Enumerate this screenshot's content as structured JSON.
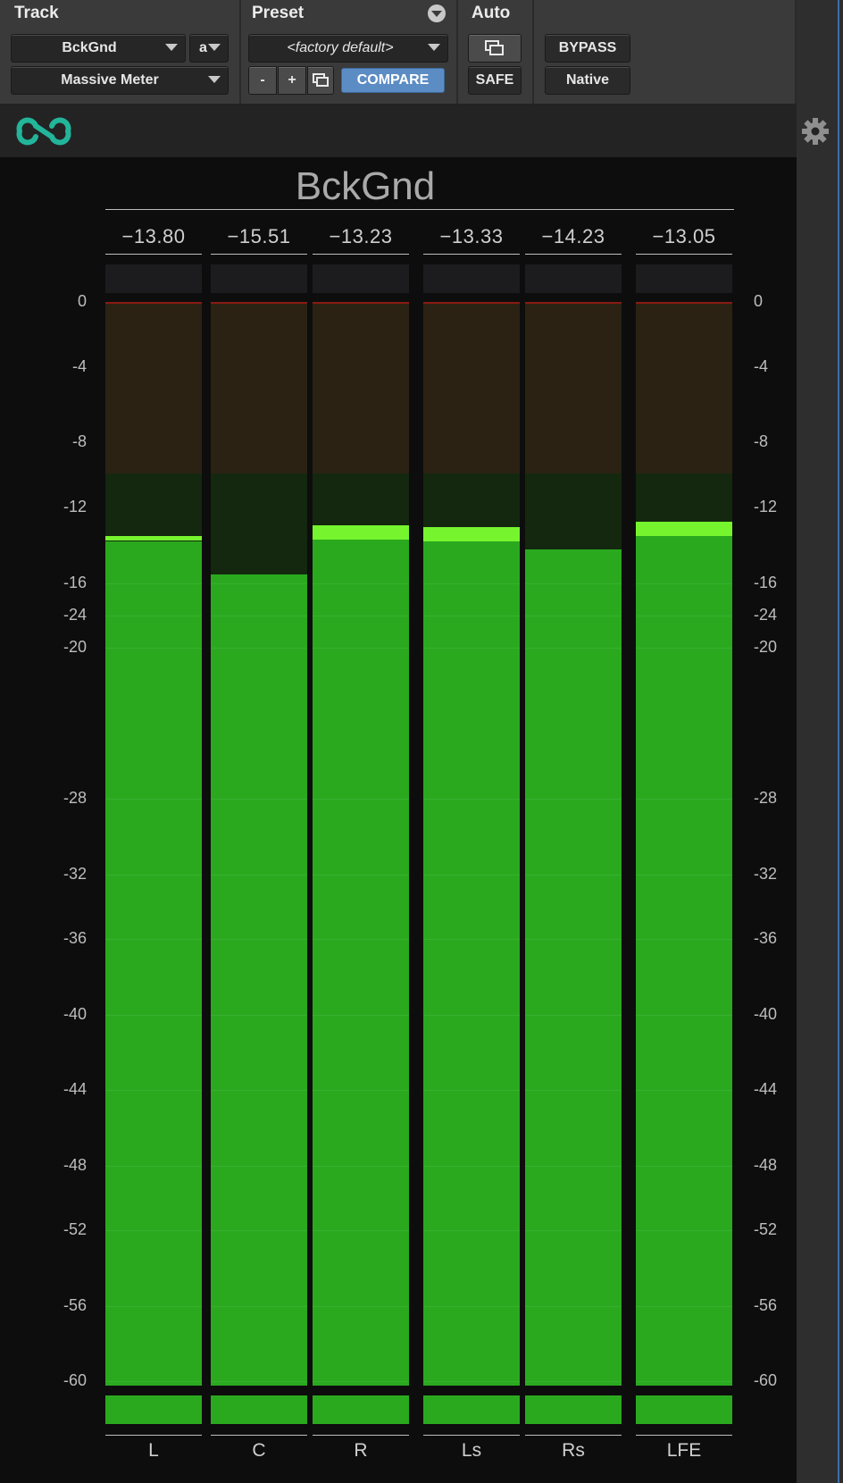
{
  "header": {
    "track_title": "Track",
    "preset_title": "Preset",
    "auto_title": "Auto",
    "track_name": "BckGnd",
    "track_chan": "a",
    "plugin_name": "Massive Meter",
    "preset_name": "<factory default>",
    "minus_label": "-",
    "plus_label": "+",
    "compare_label": "COMPARE",
    "safe_label": "SAFE",
    "bypass_label": "BYPASS",
    "native_label": "Native"
  },
  "meter": {
    "title": "BckGnd",
    "scale_left": [
      "0",
      "-4",
      "-8",
      "-12",
      "-16",
      "-24",
      "-20",
      "-28",
      "-32",
      "-36",
      "-40",
      "-44",
      "-48",
      "-52",
      "-56",
      "-60"
    ],
    "scale_right": [
      "0",
      "-4",
      "-8",
      "-12",
      "-16",
      "-24",
      "-20",
      "-28",
      "-32",
      "-36",
      "-40",
      "-44",
      "-48",
      "-52",
      "-56",
      "-60"
    ],
    "channels": [
      {
        "label": "L",
        "peak": "-13.80",
        "level_db": -13.8
      },
      {
        "label": "C",
        "peak": "-15.51",
        "level_db": -15.51
      },
      {
        "label": "R",
        "peak": "-13.23",
        "level_db": -13.23
      },
      {
        "label": "Ls",
        "peak": "-13.33",
        "level_db": -13.33
      },
      {
        "label": "Rs",
        "peak": "-14.23",
        "level_db": -14.23
      },
      {
        "label": "LFE",
        "peak": "-13.05",
        "level_db": -13.05
      }
    ]
  },
  "colors": {
    "meter_green": "#2aa91f",
    "peak_green": "#76f52e",
    "compare_blue": "#5c8cc4",
    "bypass_red": "#e53b3b",
    "logo_teal": "#22b59a"
  },
  "icons": {
    "logo": "infinity-logo-icon",
    "settings": "gear-icon",
    "preset_menu": "chevron-down-icon",
    "copy": "copy-icon",
    "power": "power-icon"
  }
}
